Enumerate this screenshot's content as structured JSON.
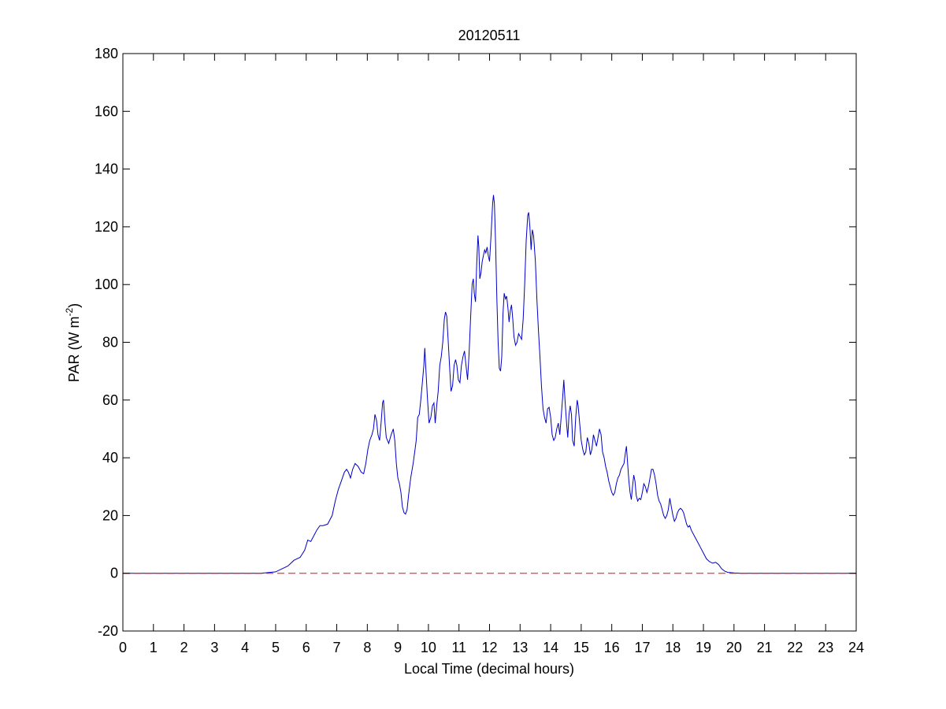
{
  "chart_data": {
    "type": "line",
    "title": "20120511",
    "xlabel": "Local Time (decimal hours)",
    "ylabel": {
      "main": "PAR (W m",
      "sup": "-2",
      "close": ")"
    },
    "xlim": [
      0,
      24
    ],
    "ylim": [
      -20,
      180
    ],
    "xticks": [
      0,
      1,
      2,
      3,
      4,
      5,
      6,
      7,
      8,
      9,
      10,
      11,
      12,
      13,
      14,
      15,
      16,
      17,
      18,
      19,
      20,
      21,
      22,
      23,
      24
    ],
    "yticks": [
      -20,
      0,
      20,
      40,
      60,
      80,
      100,
      120,
      140,
      160,
      180
    ],
    "grid": false,
    "series": [
      {
        "color": "#0000c8",
        "style": "solid",
        "points": [
          [
            0,
            0
          ],
          [
            4.5,
            0
          ],
          [
            4.8,
            0.3
          ],
          [
            5.0,
            0.5
          ],
          [
            5.2,
            1.5
          ],
          [
            5.4,
            2.5
          ],
          [
            5.6,
            4.5
          ],
          [
            5.8,
            5.5
          ],
          [
            5.95,
            8
          ],
          [
            6.05,
            11.5
          ],
          [
            6.15,
            11
          ],
          [
            6.25,
            13
          ],
          [
            6.35,
            15
          ],
          [
            6.45,
            16.5
          ],
          [
            6.55,
            16.5
          ],
          [
            6.7,
            17
          ],
          [
            6.85,
            20
          ],
          [
            6.95,
            25
          ],
          [
            7.05,
            29
          ],
          [
            7.15,
            32
          ],
          [
            7.25,
            35
          ],
          [
            7.32,
            36
          ],
          [
            7.38,
            35
          ],
          [
            7.45,
            33
          ],
          [
            7.52,
            36
          ],
          [
            7.6,
            38
          ],
          [
            7.7,
            37
          ],
          [
            7.8,
            35
          ],
          [
            7.88,
            34.5
          ],
          [
            7.95,
            38
          ],
          [
            8.02,
            43
          ],
          [
            8.08,
            46
          ],
          [
            8.15,
            48
          ],
          [
            8.2,
            50
          ],
          [
            8.25,
            55
          ],
          [
            8.3,
            53
          ],
          [
            8.35,
            48
          ],
          [
            8.4,
            46
          ],
          [
            8.45,
            52
          ],
          [
            8.5,
            59
          ],
          [
            8.53,
            60
          ],
          [
            8.58,
            52
          ],
          [
            8.62,
            47
          ],
          [
            8.7,
            45
          ],
          [
            8.78,
            48
          ],
          [
            8.85,
            50
          ],
          [
            8.9,
            46
          ],
          [
            8.95,
            38
          ],
          [
            9.0,
            33
          ],
          [
            9.05,
            31
          ],
          [
            9.1,
            28
          ],
          [
            9.15,
            23
          ],
          [
            9.2,
            21
          ],
          [
            9.25,
            20.5
          ],
          [
            9.3,
            22
          ],
          [
            9.35,
            27
          ],
          [
            9.42,
            33
          ],
          [
            9.5,
            38
          ],
          [
            9.55,
            42
          ],
          [
            9.6,
            46
          ],
          [
            9.65,
            54
          ],
          [
            9.7,
            55
          ],
          [
            9.75,
            60
          ],
          [
            9.8,
            66
          ],
          [
            9.85,
            72
          ],
          [
            9.88,
            78
          ],
          [
            9.92,
            70
          ],
          [
            9.97,
            60
          ],
          [
            10.02,
            52
          ],
          [
            10.08,
            54
          ],
          [
            10.13,
            58
          ],
          [
            10.18,
            59
          ],
          [
            10.22,
            52
          ],
          [
            10.27,
            58
          ],
          [
            10.32,
            63
          ],
          [
            10.37,
            72
          ],
          [
            10.42,
            75
          ],
          [
            10.47,
            80
          ],
          [
            10.52,
            88
          ],
          [
            10.56,
            90.5
          ],
          [
            10.6,
            89
          ],
          [
            10.65,
            80
          ],
          [
            10.7,
            70
          ],
          [
            10.74,
            63
          ],
          [
            10.79,
            65
          ],
          [
            10.84,
            72
          ],
          [
            10.89,
            74
          ],
          [
            10.93,
            72
          ],
          [
            10.98,
            67
          ],
          [
            11.03,
            66
          ],
          [
            11.08,
            72
          ],
          [
            11.13,
            75
          ],
          [
            11.18,
            77
          ],
          [
            11.23,
            72
          ],
          [
            11.28,
            67
          ],
          [
            11.33,
            76
          ],
          [
            11.38,
            88
          ],
          [
            11.43,
            100
          ],
          [
            11.47,
            102
          ],
          [
            11.5,
            97
          ],
          [
            11.54,
            94
          ],
          [
            11.58,
            107
          ],
          [
            11.62,
            117
          ],
          [
            11.65,
            113
          ],
          [
            11.68,
            102
          ],
          [
            11.72,
            104
          ],
          [
            11.76,
            108
          ],
          [
            11.8,
            110
          ],
          [
            11.84,
            112
          ],
          [
            11.88,
            111
          ],
          [
            11.92,
            113
          ],
          [
            11.96,
            110
          ],
          [
            12.0,
            108
          ],
          [
            12.05,
            117
          ],
          [
            12.1,
            128
          ],
          [
            12.13,
            131
          ],
          [
            12.16,
            128
          ],
          [
            12.2,
            113
          ],
          [
            12.24,
            95
          ],
          [
            12.28,
            80
          ],
          [
            12.32,
            71
          ],
          [
            12.36,
            70
          ],
          [
            12.4,
            75
          ],
          [
            12.44,
            90
          ],
          [
            12.48,
            97
          ],
          [
            12.52,
            95
          ],
          [
            12.56,
            96
          ],
          [
            12.6,
            92
          ],
          [
            12.64,
            87
          ],
          [
            12.68,
            91
          ],
          [
            12.72,
            93
          ],
          [
            12.76,
            88
          ],
          [
            12.8,
            82
          ],
          [
            12.85,
            79
          ],
          [
            12.9,
            80
          ],
          [
            12.95,
            83
          ],
          [
            13.0,
            82
          ],
          [
            13.05,
            81
          ],
          [
            13.1,
            88
          ],
          [
            13.15,
            100
          ],
          [
            13.2,
            115
          ],
          [
            13.25,
            124
          ],
          [
            13.28,
            125
          ],
          [
            13.32,
            120
          ],
          [
            13.36,
            112
          ],
          [
            13.4,
            119
          ],
          [
            13.44,
            117
          ],
          [
            13.5,
            108
          ],
          [
            13.55,
            95
          ],
          [
            13.6,
            84
          ],
          [
            13.65,
            75
          ],
          [
            13.7,
            65
          ],
          [
            13.75,
            57
          ],
          [
            13.8,
            54
          ],
          [
            13.85,
            52
          ],
          [
            13.9,
            57
          ],
          [
            13.95,
            57.5
          ],
          [
            14.0,
            54
          ],
          [
            14.05,
            48
          ],
          [
            14.1,
            46
          ],
          [
            14.15,
            47
          ],
          [
            14.2,
            50
          ],
          [
            14.25,
            52
          ],
          [
            14.3,
            48
          ],
          [
            14.35,
            55
          ],
          [
            14.4,
            62
          ],
          [
            14.43,
            67
          ],
          [
            14.47,
            60
          ],
          [
            14.52,
            52
          ],
          [
            14.56,
            47
          ],
          [
            14.6,
            55
          ],
          [
            14.64,
            58
          ],
          [
            14.68,
            55
          ],
          [
            14.72,
            46
          ],
          [
            14.77,
            44
          ],
          [
            14.82,
            54
          ],
          [
            14.87,
            60
          ],
          [
            14.9,
            58
          ],
          [
            14.95,
            52
          ],
          [
            15.0,
            46
          ],
          [
            15.05,
            43
          ],
          [
            15.1,
            41
          ],
          [
            15.15,
            42
          ],
          [
            15.2,
            47
          ],
          [
            15.25,
            45
          ],
          [
            15.3,
            41
          ],
          [
            15.35,
            43
          ],
          [
            15.4,
            48
          ],
          [
            15.45,
            46
          ],
          [
            15.5,
            44
          ],
          [
            15.55,
            47
          ],
          [
            15.6,
            50
          ],
          [
            15.65,
            48
          ],
          [
            15.7,
            42
          ],
          [
            15.75,
            40
          ],
          [
            15.8,
            37
          ],
          [
            15.85,
            35
          ],
          [
            15.9,
            32
          ],
          [
            15.95,
            30
          ],
          [
            16.0,
            28
          ],
          [
            16.05,
            27
          ],
          [
            16.1,
            28
          ],
          [
            16.15,
            31
          ],
          [
            16.2,
            33
          ],
          [
            16.25,
            34
          ],
          [
            16.3,
            36
          ],
          [
            16.35,
            37
          ],
          [
            16.4,
            38
          ],
          [
            16.45,
            42
          ],
          [
            16.48,
            44
          ],
          [
            16.52,
            38
          ],
          [
            16.56,
            32
          ],
          [
            16.6,
            28
          ],
          [
            16.64,
            25.5
          ],
          [
            16.68,
            30
          ],
          [
            16.72,
            34
          ],
          [
            16.76,
            32
          ],
          [
            16.8,
            27
          ],
          [
            16.85,
            25
          ],
          [
            16.9,
            26
          ],
          [
            16.95,
            25.5
          ],
          [
            17.0,
            28
          ],
          [
            17.05,
            31
          ],
          [
            17.1,
            30
          ],
          [
            17.15,
            28
          ],
          [
            17.2,
            30
          ],
          [
            17.25,
            33
          ],
          [
            17.3,
            36
          ],
          [
            17.35,
            36
          ],
          [
            17.4,
            34
          ],
          [
            17.45,
            31
          ],
          [
            17.5,
            27
          ],
          [
            17.55,
            25
          ],
          [
            17.6,
            24
          ],
          [
            17.65,
            22
          ],
          [
            17.7,
            20
          ],
          [
            17.75,
            19
          ],
          [
            17.8,
            20
          ],
          [
            17.85,
            22
          ],
          [
            17.9,
            26
          ],
          [
            17.95,
            23
          ],
          [
            18.0,
            20
          ],
          [
            18.05,
            18
          ],
          [
            18.1,
            19
          ],
          [
            18.15,
            21
          ],
          [
            18.2,
            22
          ],
          [
            18.25,
            22.5
          ],
          [
            18.3,
            22
          ],
          [
            18.35,
            21
          ],
          [
            18.4,
            19
          ],
          [
            18.45,
            17
          ],
          [
            18.5,
            16
          ],
          [
            18.55,
            16.5
          ],
          [
            18.6,
            15
          ],
          [
            18.7,
            13
          ],
          [
            18.8,
            11
          ],
          [
            18.9,
            9
          ],
          [
            19.0,
            7
          ],
          [
            19.1,
            5
          ],
          [
            19.2,
            4
          ],
          [
            19.3,
            3.5
          ],
          [
            19.4,
            3.8
          ],
          [
            19.5,
            3
          ],
          [
            19.6,
            1.5
          ],
          [
            19.7,
            0.7
          ],
          [
            19.8,
            0.3
          ],
          [
            20.0,
            0.1
          ],
          [
            20.2,
            0
          ],
          [
            24,
            0
          ]
        ]
      },
      {
        "color": "#ff0000",
        "style": "dashed",
        "points": [
          [
            0,
            0
          ],
          [
            24,
            0
          ]
        ]
      }
    ]
  }
}
